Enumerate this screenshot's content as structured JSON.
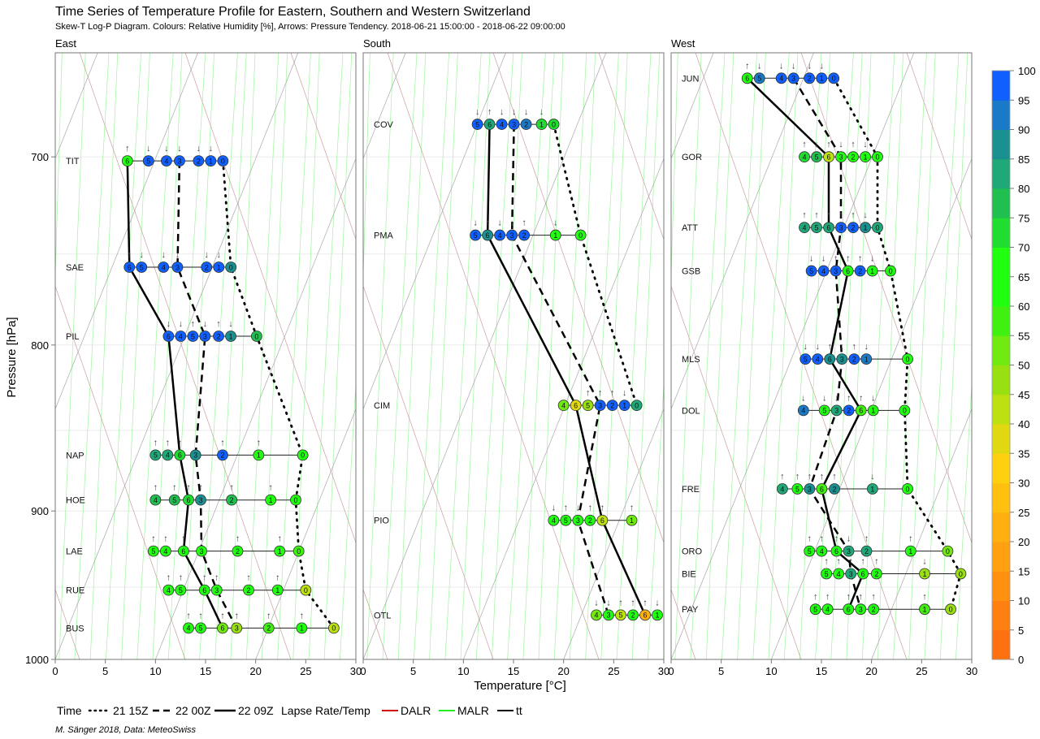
{
  "title": "Time Series of Temperature Profile for Eastern, Southern and Western Switzerland",
  "subtitle": "Skew-T Log-P Diagram. Colours: Relative Humidity [%], Arrows: Pressure Tendency. 2018-06-21 15:00:00 - 2018-06-22 09:00:00",
  "caption": "M. Sänger 2018, Data: MeteoSwiss",
  "legend": {
    "time_label": "Time",
    "times": [
      "21 15Z",
      "22 00Z",
      "22 09Z"
    ],
    "lapse_label": "Lapse Rate/Temp",
    "lapse": [
      "DALR",
      "MALR",
      "tt"
    ],
    "lapse_colors": [
      "#cc0000",
      "#22ee22",
      "#000000"
    ]
  },
  "chart_data": {
    "type": "scatter",
    "xlabel": "Temperature [°C]",
    "ylabel": "Pressure [hPa]",
    "xlim": [
      0,
      30
    ],
    "ylim": [
      1000,
      650
    ],
    "xticks": [
      0,
      5,
      10,
      15,
      20,
      25,
      30
    ],
    "yticks": [
      700,
      800,
      900,
      1000
    ],
    "profile_steps": [
      0,
      3,
      6
    ],
    "colorbar": {
      "label": "Relative Humidity [%]",
      "ticks": [
        0,
        5,
        10,
        15,
        20,
        25,
        30,
        35,
        40,
        45,
        50,
        55,
        60,
        65,
        70,
        75,
        80,
        85,
        90,
        95,
        100
      ],
      "colors": [
        "#ff7010",
        "#ff8010",
        "#ff9010",
        "#ffa010",
        "#ffb010",
        "#ffc010",
        "#ffd010",
        "#e0d810",
        "#bce010",
        "#98e010",
        "#70ea10",
        "#40f010",
        "#20ff10",
        "#20ff10",
        "#20dd30",
        "#20c050",
        "#1fa878",
        "#1a9090",
        "#1a7ac8",
        "#1060ff"
      ]
    },
    "panels": [
      {
        "name": "East",
        "stations": [
          {
            "id": "TIT",
            "p": 702,
            "T": [
              16.1,
              15.5,
              14.3,
              12.4,
              11.1,
              9.3,
              7.2
            ],
            "RH": [
              98,
              98,
              100,
              100,
              100,
              98,
              62
            ],
            "tend": [
              "",
              "↓",
              "↓",
              "↓",
              "↓",
              "↓",
              "↑"
            ]
          },
          {
            "id": "SAE",
            "p": 757,
            "T": [
              17.5,
              16.3,
              15.1,
              12.2,
              10.8,
              8.6,
              7.4
            ],
            "RH": [
              85,
              98,
              100,
              100,
              100,
              98,
              100
            ],
            "tend": [
              "",
              "↓",
              "↓",
              "↓",
              "↓",
              "↓",
              "↑"
            ]
          },
          {
            "id": "PIL",
            "p": 795,
            "T": [
              20.1,
              17.5,
              16.3,
              13.6,
              11.5,
              11.6,
              11.3
            ],
            "RH": [
              78,
              88,
              98,
              100,
              100,
              100,
              100
            ],
            "tend": [
              "",
              "↓",
              "↑",
              "↓",
              "↓",
              "↑",
              "↓"
            ]
          },
          {
            "id": "NAP",
            "p": 865,
            "T": [
              24.7,
              20.3,
              16.7,
              14.0,
              10.9,
              10.0,
              12.4
            ],
            "RH": [
              66,
              68,
              96,
              88,
              80,
              80,
              70
            ],
            "tend": [
              "",
              "↑",
              "↑",
              "",
              "↑",
              "↑",
              "↑"
            ]
          },
          {
            "id": "HOE",
            "p": 893,
            "T": [
              24.0,
              21.5,
              17.6,
              13.6,
              10.0,
              11.9,
              13.3
            ],
            "RH": [
              62,
              67,
              76,
              85,
              76,
              76,
              70
            ],
            "tend": [
              "",
              "↑",
              "↑",
              "↑",
              "↑",
              "↑",
              "↑"
            ]
          },
          {
            "id": "LAE",
            "p": 926,
            "T": [
              24.3,
              22.4,
              18.2,
              14.6,
              11.0,
              9.8,
              12.8
            ],
            "RH": [
              58,
              66,
              66,
              66,
              66,
              66,
              66
            ],
            "tend": [
              "",
              "↑",
              "↑",
              "↑",
              "↑",
              "↑",
              "↑"
            ]
          },
          {
            "id": "RUE",
            "p": 952,
            "T": [
              25.0,
              22.2,
              19.3,
              15.5,
              11.3,
              12.0,
              14.9
            ],
            "RH": [
              42,
              65,
              63,
              62,
              65,
              65,
              62
            ],
            "tend": [
              "",
              "↑",
              "↑",
              "↑",
              "↑",
              "↑",
              "↑"
            ]
          },
          {
            "id": "BUS",
            "p": 978,
            "T": [
              27.8,
              24.6,
              21.3,
              18.1,
              13.3,
              13.3,
              16.7
            ],
            "RH": [
              40,
              60,
              55,
              45,
              62,
              62,
              50
            ],
            "tend": [
              "",
              "↑",
              "↑",
              "↑",
              "↑",
              "↑",
              "↑"
            ]
          }
        ]
      },
      {
        "name": "South",
        "stations": [
          {
            "id": "COV",
            "p": 684,
            "T": [
              18.8,
              17.8,
              15.6,
              14.2,
              12.4,
              11.4,
              11.8
            ],
            "RH": [
              70,
              72,
              92,
              98,
              98,
              100,
              82
            ],
            "tend": [
              "",
              "↓",
              "↓",
              "↓",
              "↓",
              "↓",
              "↑"
            ]
          },
          {
            "id": "PMA",
            "p": 740,
            "T": [
              21.7,
              19.2,
              15.8,
              14.6,
              12.9,
              11.2,
              11.9
            ],
            "RH": [
              62,
              68,
              100,
              100,
              100,
              100,
              88
            ],
            "tend": [
              "",
              "↓",
              "↑",
              "↓",
              "↓",
              "↓",
              "↑"
            ]
          },
          {
            "id": "CIM",
            "p": 835,
            "T": [
              23.7,
              21.8,
              21.6,
              21.5,
              20.0,
              21.3,
              20.9
            ],
            "RH": [
              82,
              96,
              96,
              96,
              50,
              45,
              35
            ],
            "tend": [
              "",
              "↓",
              "↑",
              "↑",
              "",
              "↑",
              ""
            ]
          },
          {
            "id": "PIO",
            "p": 906,
            "T": [
              null,
              26.8,
              21.7,
              21.3,
              19.0,
              19.2,
              22.8
            ],
            "RH": [
              null,
              50,
              65,
              65,
              65,
              65,
              40
            ],
            "tend": [
              "",
              "↑",
              "↑",
              "↓",
              "↓",
              "↑",
              "↑"
            ]
          },
          {
            "id": "OTL",
            "p": 969,
            "T": [
              null,
              28.6,
              25.4,
              24.5,
              23.8,
              25.1,
              27.8
            ],
            "RH": [
              null,
              62,
              65,
              65,
              50,
              40,
              20
            ],
            "tend": [
              "",
              "↓",
              "↑",
              "↓",
              "↓",
              "↑",
              "↑"
            ]
          }
        ]
      },
      {
        "name": "West",
        "stations": [
          {
            "id": "JUN",
            "p": 662,
            "T": [
              15.4,
              14.1,
              13.8,
              12.0,
              11.0,
              8.7,
              7.6
            ],
            "RH": [
              98,
              100,
              100,
              100,
              100,
              90,
              62
            ],
            "tend": [
              "",
              "↓",
              "↓",
              "↓",
              "↓",
              "↓",
              "↑"
            ]
          },
          {
            "id": "GOR",
            "p": 700,
            "T": [
              19.6,
              17.8,
              16.5,
              15.2,
              13.3,
              13.3,
              14.8
            ],
            "RH": [
              65,
              65,
              65,
              65,
              72,
              75,
              42
            ],
            "tend": [
              "",
              "↓",
              "↑",
              "↓",
              "↑",
              "↓",
              "↑"
            ]
          },
          {
            "id": "ATT",
            "p": 736,
            "T": [
              19.4,
              17.6,
              15.7,
              14.5,
              13.3,
              13.3,
              13.3
            ],
            "RH": [
              80,
              88,
              100,
              100,
              80,
              80,
              80
            ],
            "tend": [
              "",
              "↓",
              "↑",
              "↑",
              "↑",
              "↑",
              "↑"
            ]
          },
          {
            "id": "GSB",
            "p": 759,
            "T": [
              21.9,
              19.1,
              16.3,
              15.4,
              14.8,
              14.0,
              15.5
            ],
            "RH": [
              62,
              66,
              98,
              100,
              100,
              100,
              65
            ],
            "tend": [
              "",
              "↓",
              "↑",
              "↑",
              "↓",
              "↓",
              "↑"
            ]
          },
          {
            "id": "MLS",
            "p": 808,
            "T": [
              23.6,
              18.1,
              16.2,
              14.8,
              13.6,
              13.4,
              14.0
            ],
            "RH": [
              60,
              92,
              100,
              88,
              100,
              100,
              88
            ],
            "tend": [
              "",
              "↓",
              "↑",
              "↓",
              "↓",
              "↓",
              "↑"
            ]
          },
          {
            "id": "DOL",
            "p": 838,
            "T": [
              23.3,
              19.4,
              16.0,
              15.8,
              13.2,
              15.3,
              16.9
            ],
            "RH": [
              62,
              66,
              100,
              80,
              92,
              66,
              55
            ],
            "tend": [
              "",
              "↓",
              "↑",
              "↓",
              "↓",
              "↓",
              "↑"
            ]
          },
          {
            "id": "FRE",
            "p": 886,
            "T": [
              23.6,
              20.1,
              16.3,
              13.8,
              11.1,
              12.6,
              14.9
            ],
            "RH": [
              60,
              80,
              88,
              88,
              80,
              68,
              55
            ],
            "tend": [
              "",
              "↓",
              "↑",
              "↑",
              "↑",
              "↑",
              "↑"
            ]
          },
          {
            "id": "ORO",
            "p": 926,
            "T": [
              27.6,
              23.9,
              19.5,
              16.9,
              14.9,
              13.8,
              16.5
            ],
            "RH": [
              50,
              65,
              80,
              80,
              68,
              68,
              60
            ],
            "tend": [
              "",
              "↑",
              "↑",
              "↓",
              "↑",
              "↑",
              "↑"
            ]
          },
          {
            "id": "BIE",
            "p": 941,
            "T": [
              28.9,
              25.3,
              20.5,
              16.8,
              15.9,
              15.5,
              18.4
            ],
            "RH": [
              45,
              45,
              65,
              80,
              68,
              68,
              62
            ],
            "tend": [
              "",
              "↓",
              "↑",
              "↑",
              "↑",
              "↑",
              "↑"
            ]
          },
          {
            "id": "PAY",
            "p": 965,
            "T": [
              27.9,
              25.3,
              20.2,
              18.3,
              15.0,
              14.4,
              17.7
            ],
            "RH": [
              45,
              55,
              65,
              65,
              65,
              65,
              60
            ],
            "tend": [
              "",
              "↑",
              "↑",
              "↑",
              "↑",
              "↑",
              "↑"
            ]
          }
        ]
      }
    ]
  }
}
